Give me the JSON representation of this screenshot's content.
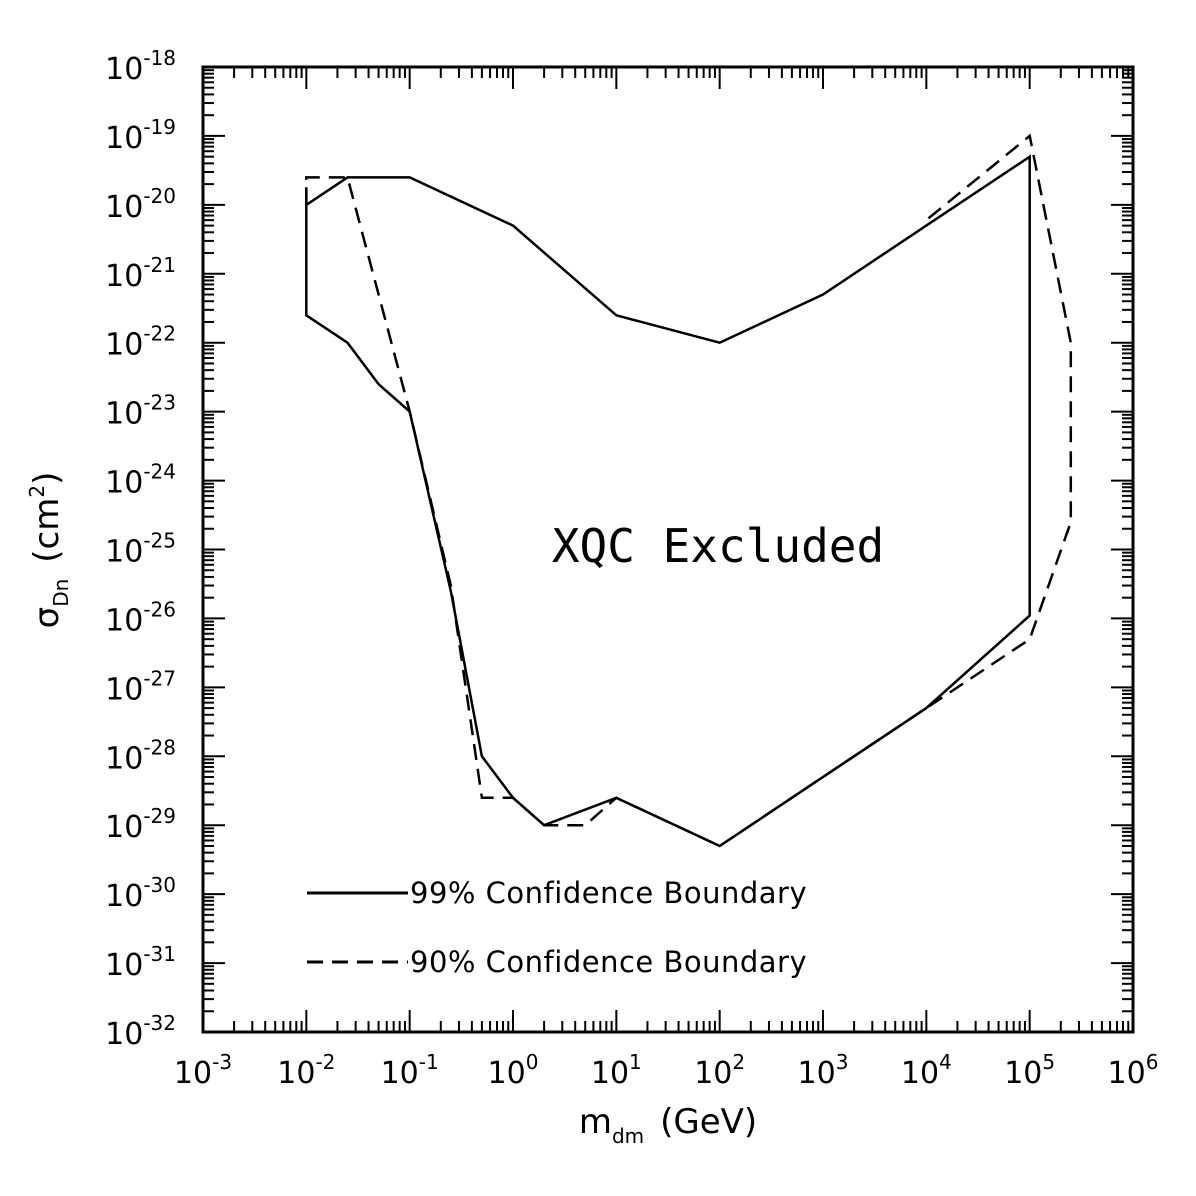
{
  "chart_data": {
    "type": "line",
    "xlabel": {
      "main": "m",
      "sub": "dm",
      "unit": "(GeV)"
    },
    "ylabel": {
      "main": "σ",
      "sub": "Dn",
      "unit_prefix": "(cm",
      "unit_sup": "2",
      "unit_suffix": ")"
    },
    "x_scale": "log",
    "y_scale": "log",
    "xlim": [
      0.001,
      1000000
    ],
    "ylim": [
      1e-32,
      1e-18
    ],
    "x_ticks": [
      {
        "base": "10",
        "exp": "-3"
      },
      {
        "base": "10",
        "exp": "-2"
      },
      {
        "base": "10",
        "exp": "-1"
      },
      {
        "base": "10",
        "exp": "0"
      },
      {
        "base": "10",
        "exp": "1"
      },
      {
        "base": "10",
        "exp": "2"
      },
      {
        "base": "10",
        "exp": "3"
      },
      {
        "base": "10",
        "exp": "4"
      },
      {
        "base": "10",
        "exp": "5"
      },
      {
        "base": "10",
        "exp": "6"
      }
    ],
    "y_ticks": [
      {
        "base": "10",
        "exp": "-32"
      },
      {
        "base": "10",
        "exp": "-31"
      },
      {
        "base": "10",
        "exp": "-30"
      },
      {
        "base": "10",
        "exp": "-29"
      },
      {
        "base": "10",
        "exp": "-28"
      },
      {
        "base": "10",
        "exp": "-27"
      },
      {
        "base": "10",
        "exp": "-26"
      },
      {
        "base": "10",
        "exp": "-25"
      },
      {
        "base": "10",
        "exp": "-24"
      },
      {
        "base": "10",
        "exp": "-23"
      },
      {
        "base": "10",
        "exp": "-22"
      },
      {
        "base": "10",
        "exp": "-21"
      },
      {
        "base": "10",
        "exp": "-20"
      },
      {
        "base": "10",
        "exp": "-19"
      },
      {
        "base": "10",
        "exp": "-18"
      }
    ],
    "grid": false,
    "annotation": "XQC Excluded",
    "legend_position": "bottom-left",
    "series": [
      {
        "name": "99% Confidence Boundary",
        "style": "solid",
        "points": [
          [
            0.01,
            1e-20
          ],
          [
            0.025,
            2.5e-20
          ],
          [
            0.1,
            2.5e-20
          ],
          [
            1,
            5e-21
          ],
          [
            10,
            2.5e-22
          ],
          [
            100,
            1e-22
          ],
          [
            1000,
            5e-22
          ],
          [
            10000,
            5e-21
          ],
          [
            100000,
            5e-20
          ],
          [
            100000,
            1.1e-26
          ],
          [
            10000,
            5e-28
          ],
          [
            1000,
            5e-29
          ],
          [
            100,
            5e-30
          ],
          [
            10,
            2.5e-29
          ],
          [
            2,
            1e-29
          ],
          [
            1,
            2.5e-29
          ],
          [
            0.5,
            1e-28
          ],
          [
            0.25,
            2.5e-26
          ],
          [
            0.1,
            1e-23
          ],
          [
            0.05,
            2.5e-23
          ],
          [
            0.025,
            1e-22
          ],
          [
            0.01,
            2.5e-22
          ],
          [
            0.01,
            1.8e-20
          ]
        ]
      },
      {
        "name": "90% Confidence Boundary",
        "style": "dashed",
        "points": [
          [
            0.01,
            1e-20
          ],
          [
            0.01,
            2.5e-20
          ],
          [
            0.025,
            2.5e-20
          ],
          [
            0.1,
            1e-23
          ],
          [
            0.25,
            3e-26
          ],
          [
            0.5,
            2.5e-29
          ],
          [
            1,
            2.5e-29
          ],
          [
            2,
            1e-29
          ],
          [
            5,
            1e-29
          ],
          [
            10,
            2.5e-29
          ],
          [
            100,
            5e-30
          ],
          [
            1000,
            5e-29
          ],
          [
            10000,
            5e-28
          ],
          [
            100000,
            5e-27
          ],
          [
            250000,
            2.5e-25
          ],
          [
            250000,
            1e-22
          ],
          [
            100000,
            1e-19
          ],
          [
            10000,
            6e-21
          ]
        ]
      }
    ]
  }
}
